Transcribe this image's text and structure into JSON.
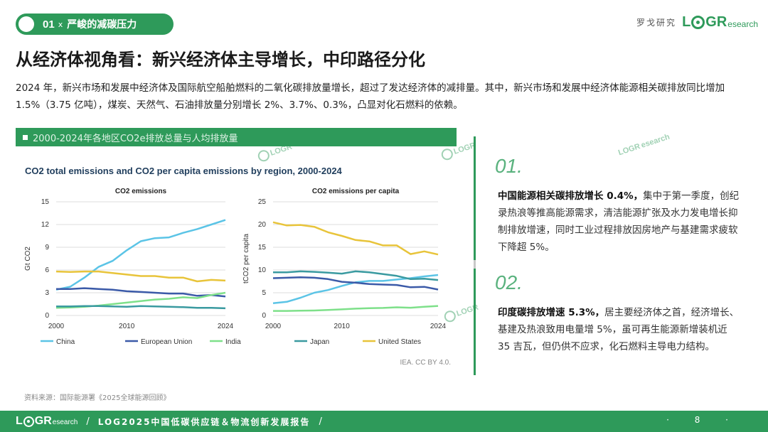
{
  "header": {
    "section_num": "01",
    "section_x": "x",
    "section_title": "严峻的减碳压力",
    "brand_cn": "罗戈研究",
    "logo_l": "L",
    "logo_g": "G",
    "logo_r": "R",
    "logo_research": "esearch"
  },
  "title": "从经济体视角看：新兴经济体主导增长，中印路径分化",
  "intro": "2024 年，新兴市场和发展中经济体及国际航空船舶燃料的二氧化碳排放量增长，超过了发达经济体的减排量。其中，新兴市场和发展中经济体能源相关碳排放同比增加 1.5%（3.75 亿吨），煤炭、天然气、石油排放量分别增长 2%、3.7%、0.3%，凸显对化石燃料的依赖。",
  "panel": {
    "header": "2000-2024年各地区CO2e排放总量与人均排放量",
    "source_note": "IEA. CC BY 4.0."
  },
  "footnote": "资料来源：国际能源署《2025全球能源回顾》",
  "points": [
    {
      "num": "01.",
      "bold": "中国能源相关碳排放增长 0.4%，",
      "text": "集中于第一季度，创纪录热浪等推高能源需求，清洁能源扩张及水力发电增长抑制排放增速，同时工业过程排放因房地产与基建需求疲软下降超 5%。"
    },
    {
      "num": "02.",
      "bold": "印度碳排放增速 5.3%，",
      "text": "居主要经济体之首，经济增长、基建及热浪致用电量增 5%，虽可再生能源新增装机近 35 吉瓦，但仍供不应求，化石燃料主导电力结构。"
    }
  ],
  "watermark": {
    "logo": "LOGR",
    "sub": "esearch"
  },
  "footer": {
    "slash": "/",
    "text": "LOG2025中国低碳供应链＆物流创新发展报告",
    "slash2": "/",
    "page": "· 8 ·"
  },
  "chart_data": [
    {
      "type": "line",
      "title": "CO2 total emissions and CO2 per capita emissions by region, 2000-2024",
      "subtitle": "CO2 emissions",
      "ylabel": "Gt CO2",
      "xlabel": "",
      "xlim": [
        2000,
        2024
      ],
      "ylim": [
        0,
        15
      ],
      "xticks": [
        "2000",
        "2010",
        "2024"
      ],
      "yticks": [
        "0",
        "3",
        "6",
        "9",
        "12",
        "15"
      ],
      "x": [
        2000,
        2002,
        2004,
        2006,
        2008,
        2010,
        2012,
        2014,
        2016,
        2018,
        2020,
        2022,
        2024
      ],
      "series": [
        {
          "name": "China",
          "color": "#5bc4e6",
          "values": [
            3.4,
            3.8,
            5.0,
            6.4,
            7.2,
            8.6,
            9.8,
            10.2,
            10.3,
            10.9,
            11.4,
            12.0,
            12.6
          ]
        },
        {
          "name": "European Union",
          "color": "#3b5aa8",
          "values": [
            3.5,
            3.5,
            3.6,
            3.5,
            3.4,
            3.2,
            3.1,
            3.0,
            2.9,
            2.9,
            2.6,
            2.7,
            2.5
          ]
        },
        {
          "name": "India",
          "color": "#7ee08a",
          "values": [
            1.0,
            1.05,
            1.15,
            1.3,
            1.5,
            1.7,
            1.9,
            2.1,
            2.2,
            2.4,
            2.3,
            2.7,
            3.0
          ]
        },
        {
          "name": "Japan",
          "color": "#3a9aa0",
          "values": [
            1.2,
            1.2,
            1.25,
            1.25,
            1.2,
            1.15,
            1.25,
            1.2,
            1.15,
            1.1,
            1.0,
            1.0,
            0.95
          ]
        },
        {
          "name": "United States",
          "color": "#e8c43a",
          "values": [
            5.8,
            5.75,
            5.8,
            5.8,
            5.6,
            5.4,
            5.2,
            5.2,
            5.0,
            5.0,
            4.5,
            4.7,
            4.6
          ]
        }
      ]
    },
    {
      "type": "line",
      "title": "",
      "subtitle": "CO2 emissions per capita",
      "ylabel": "tCO2 per capita",
      "xlabel": "",
      "xlim": [
        2000,
        2024
      ],
      "ylim": [
        0,
        25
      ],
      "xticks": [
        "2000",
        "2010",
        "2024"
      ],
      "yticks": [
        "0",
        "5",
        "10",
        "15",
        "20",
        "25"
      ],
      "x": [
        2000,
        2002,
        2004,
        2006,
        2008,
        2010,
        2012,
        2014,
        2016,
        2018,
        2020,
        2022,
        2024
      ],
      "series": [
        {
          "name": "China",
          "color": "#5bc4e6",
          "values": [
            2.7,
            3.0,
            3.9,
            5.0,
            5.6,
            6.5,
            7.3,
            7.6,
            7.6,
            7.9,
            8.2,
            8.6,
            8.9
          ]
        },
        {
          "name": "European Union",
          "color": "#3b5aa8",
          "values": [
            8.2,
            8.3,
            8.4,
            8.3,
            8.0,
            7.4,
            7.2,
            6.9,
            6.8,
            6.7,
            6.2,
            6.3,
            5.7
          ]
        },
        {
          "name": "India",
          "color": "#7ee08a",
          "values": [
            1.0,
            1.0,
            1.05,
            1.1,
            1.2,
            1.35,
            1.5,
            1.6,
            1.65,
            1.8,
            1.7,
            1.9,
            2.1
          ]
        },
        {
          "name": "Japan",
          "color": "#3a9aa0",
          "values": [
            9.5,
            9.5,
            9.7,
            9.6,
            9.4,
            9.2,
            9.7,
            9.5,
            9.1,
            8.7,
            8.0,
            8.1,
            7.8
          ]
        },
        {
          "name": "United States",
          "color": "#e8c43a",
          "values": [
            20.5,
            19.8,
            19.9,
            19.5,
            18.3,
            17.5,
            16.6,
            16.3,
            15.4,
            15.4,
            13.5,
            14.1,
            13.4
          ]
        }
      ]
    }
  ]
}
